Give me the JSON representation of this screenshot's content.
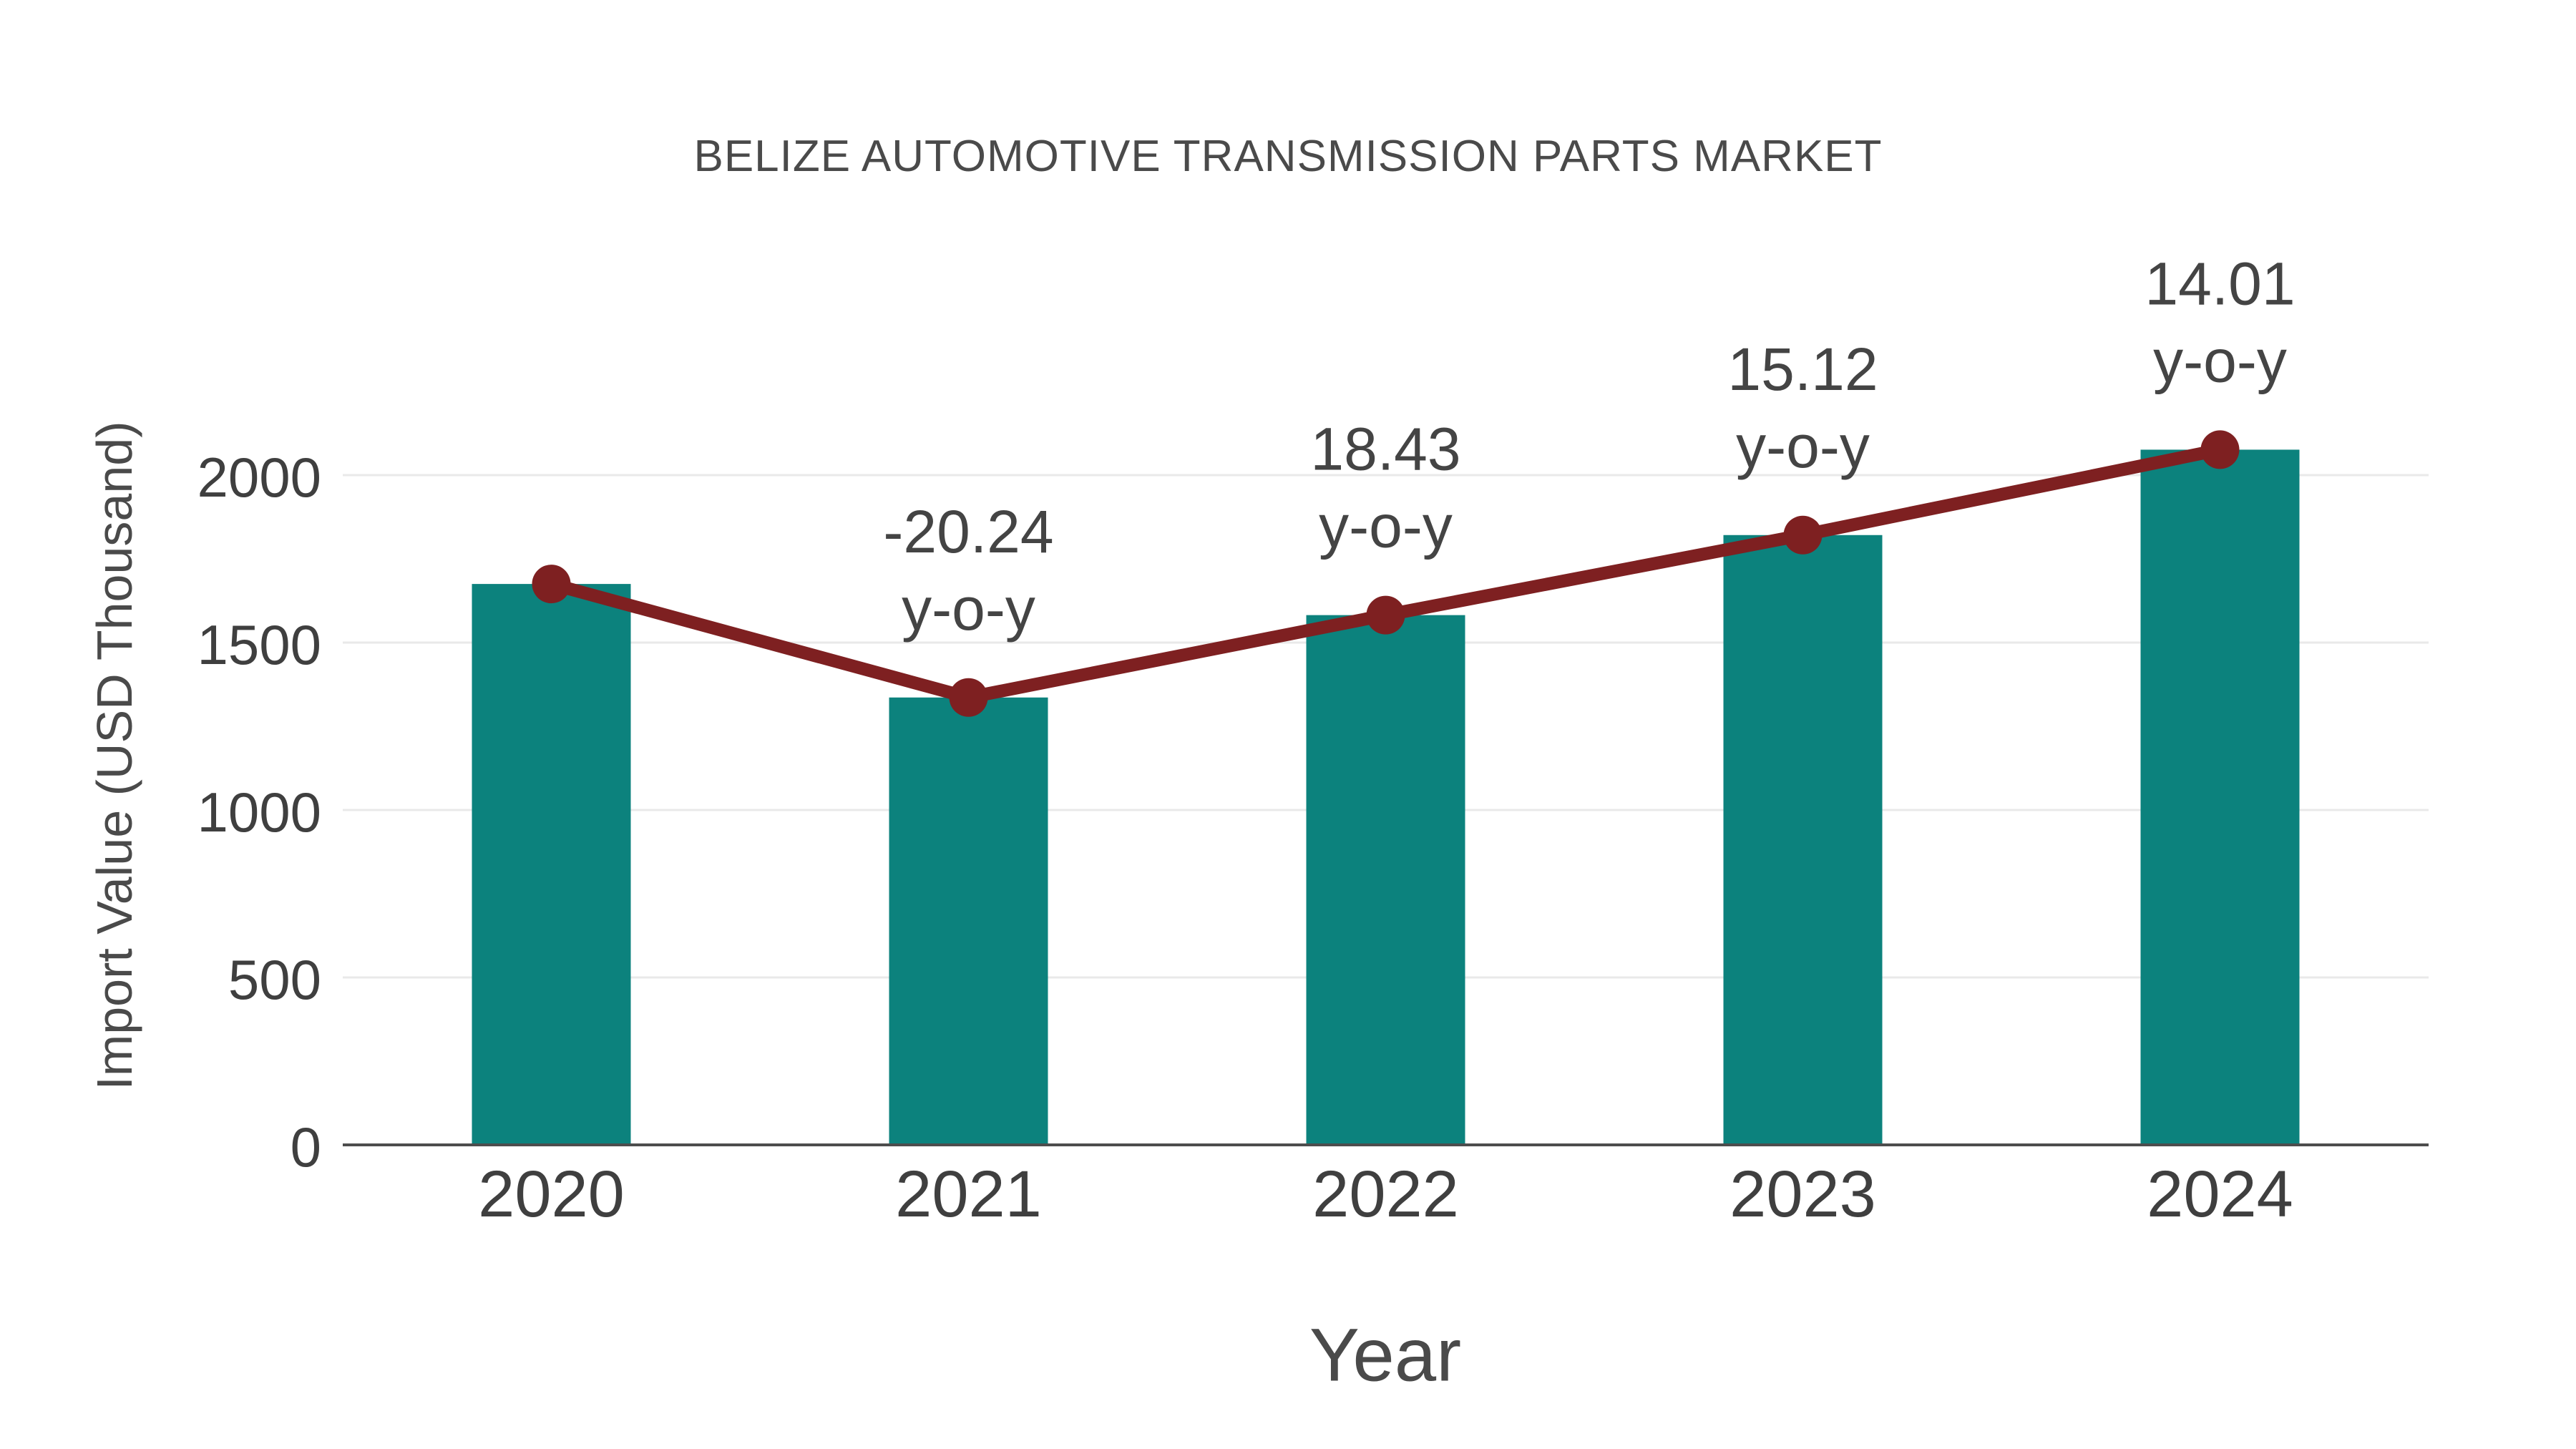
{
  "title": "BELIZE AUTOMOTIVE TRANSMISSION PARTS MARKET",
  "colors": {
    "background": "#ffffff",
    "bar": "#0c827d",
    "line": "#7e2021",
    "marker": "#7e2021",
    "title_text": "#4a4a4a",
    "axis_title_text": "#4a4a4a",
    "tick_text": "#3f3f3f",
    "annotation_text": "#444444",
    "gridline": "#e9e9e9",
    "axis_line": "#4d4d4d"
  },
  "chart_data": {
    "type": "bar",
    "title": "BELIZE AUTOMOTIVE TRANSMISSION PARTS MARKET",
    "xlabel": "Year",
    "ylabel": "Import Value (USD Thousand)",
    "categories": [
      "2020",
      "2021",
      "2022",
      "2023",
      "2024"
    ],
    "series": [
      {
        "name": "Import Value (USD Thousand)",
        "type": "bar",
        "values": [
          1675,
          1336,
          1582,
          1821,
          2076
        ]
      },
      {
        "name": "Year-over-year trend line",
        "type": "line",
        "values": [
          1675,
          1336,
          1582,
          1821,
          2076
        ]
      }
    ],
    "yoy_annotations": [
      {
        "category": "2021",
        "value": -20.24,
        "label": "-20.24",
        "suffix": "y-o-y"
      },
      {
        "category": "2022",
        "value": 18.43,
        "label": "18.43",
        "suffix": "y-o-y"
      },
      {
        "category": "2023",
        "value": 15.12,
        "label": "15.12",
        "suffix": "y-o-y"
      },
      {
        "category": "2024",
        "value": 14.01,
        "label": "14.01",
        "suffix": "y-o-y"
      }
    ],
    "yticks": [
      0,
      500,
      1000,
      1500,
      2000
    ],
    "ytick_labels": [
      "0",
      "500",
      "1000",
      "1500",
      "2000"
    ],
    "ylim": [
      0,
      2100
    ],
    "grid": "horizontal",
    "legend": "none"
  }
}
